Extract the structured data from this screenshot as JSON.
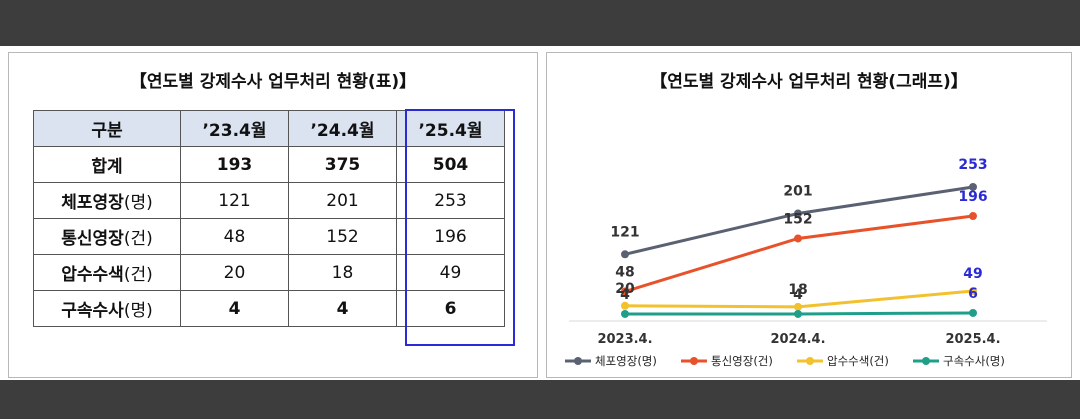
{
  "table": {
    "title": "【연도별 강제수사 업무처리 현황(표)】",
    "header": [
      "구분",
      "’23.4월",
      "’24.4월",
      "’25.4월"
    ],
    "rows": [
      {
        "label": "합계",
        "unit": "",
        "values": [
          "193",
          "375",
          "504"
        ]
      },
      {
        "label": "체포영장",
        "unit": "(명)",
        "values": [
          "121",
          "201",
          "253"
        ]
      },
      {
        "label": "통신영장",
        "unit": "(건)",
        "values": [
          "48",
          "152",
          "196"
        ]
      },
      {
        "label": "압수수색",
        "unit": "(건)",
        "values": [
          "20",
          "18",
          "49"
        ]
      },
      {
        "label": "구속수사",
        "unit": "(명)",
        "values": [
          "4",
          "4",
          "6"
        ]
      }
    ]
  },
  "chart_title": "【연도별 강제수사 업무처리 현황(그래프)】",
  "chart_data": {
    "type": "line",
    "title": "【연도별 강제수사 업무처리 현황(그래프)】",
    "x": [
      "2023.4.",
      "2024.4.",
      "2025.4."
    ],
    "series": [
      {
        "name": "체포영장(명)",
        "values": [
          121,
          201,
          253
        ],
        "color": "#5a6172"
      },
      {
        "name": "통신영장(건)",
        "values": [
          48,
          152,
          196
        ],
        "color": "#e8522a"
      },
      {
        "name": "압수수색(건)",
        "values": [
          20,
          18,
          49
        ],
        "color": "#f2c12e"
      },
      {
        "name": "구속수사(명)",
        "values": [
          4,
          4,
          6
        ],
        "color": "#1f9e89"
      }
    ],
    "highlight_color": "#2b2bd6",
    "legend_position": "bottom",
    "grid": false
  }
}
